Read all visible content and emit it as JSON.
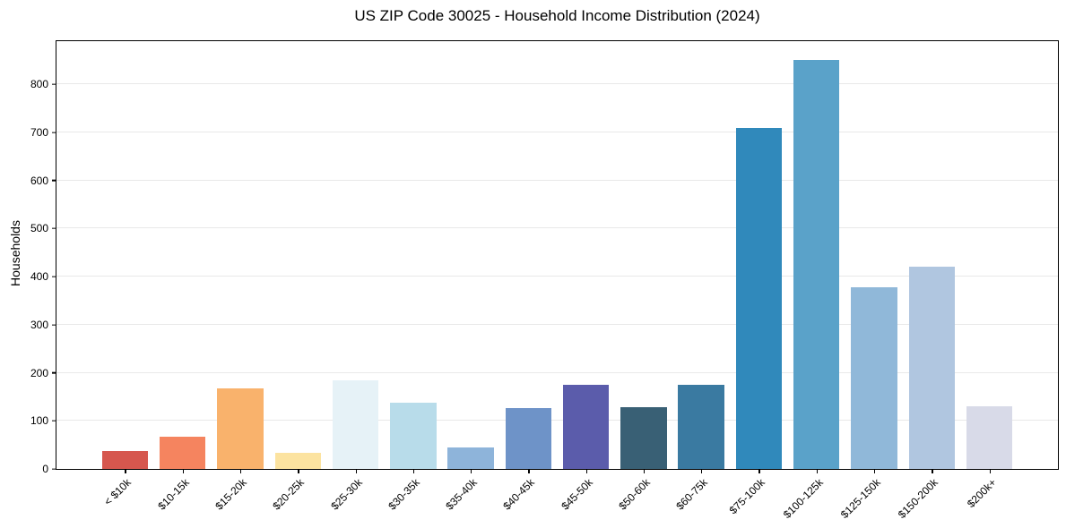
{
  "chart_data": {
    "type": "bar",
    "title": "US ZIP Code 30025 - Household Income Distribution (2024)",
    "xlabel": "",
    "ylabel": "Households",
    "categories": [
      "< $10k",
      "$10-15k",
      "$15-20k",
      "$20-25k",
      "$25-30k",
      "$30-35k",
      "$35-40k",
      "$40-45k",
      "$45-50k",
      "$50-60k",
      "$60-75k",
      "$75-100k",
      "$100-125k",
      "$125-150k",
      "$150-200k",
      "$200k+"
    ],
    "values": [
      37,
      67,
      167,
      34,
      185,
      137,
      44,
      126,
      175,
      129,
      175,
      710,
      850,
      378,
      420,
      131
    ],
    "bar_colors": [
      "#d6574e",
      "#f5845f",
      "#f9b26c",
      "#fce3a0",
      "#e6f2f7",
      "#b8dcea",
      "#8eb4da",
      "#6e93c8",
      "#5b5cab",
      "#396075",
      "#3a7aa1",
      "#3089bb",
      "#5aa2c9",
      "#90b8d9",
      "#b0c6e0",
      "#d8dae8"
    ],
    "yticks": [
      0,
      100,
      200,
      300,
      400,
      500,
      600,
      700,
      800
    ],
    "ylim": [
      0,
      890
    ],
    "grid": true,
    "legend_position": "none",
    "spine_color": "#000000",
    "grid_color": "#e9e9e9",
    "background_color": "#ffffff"
  }
}
